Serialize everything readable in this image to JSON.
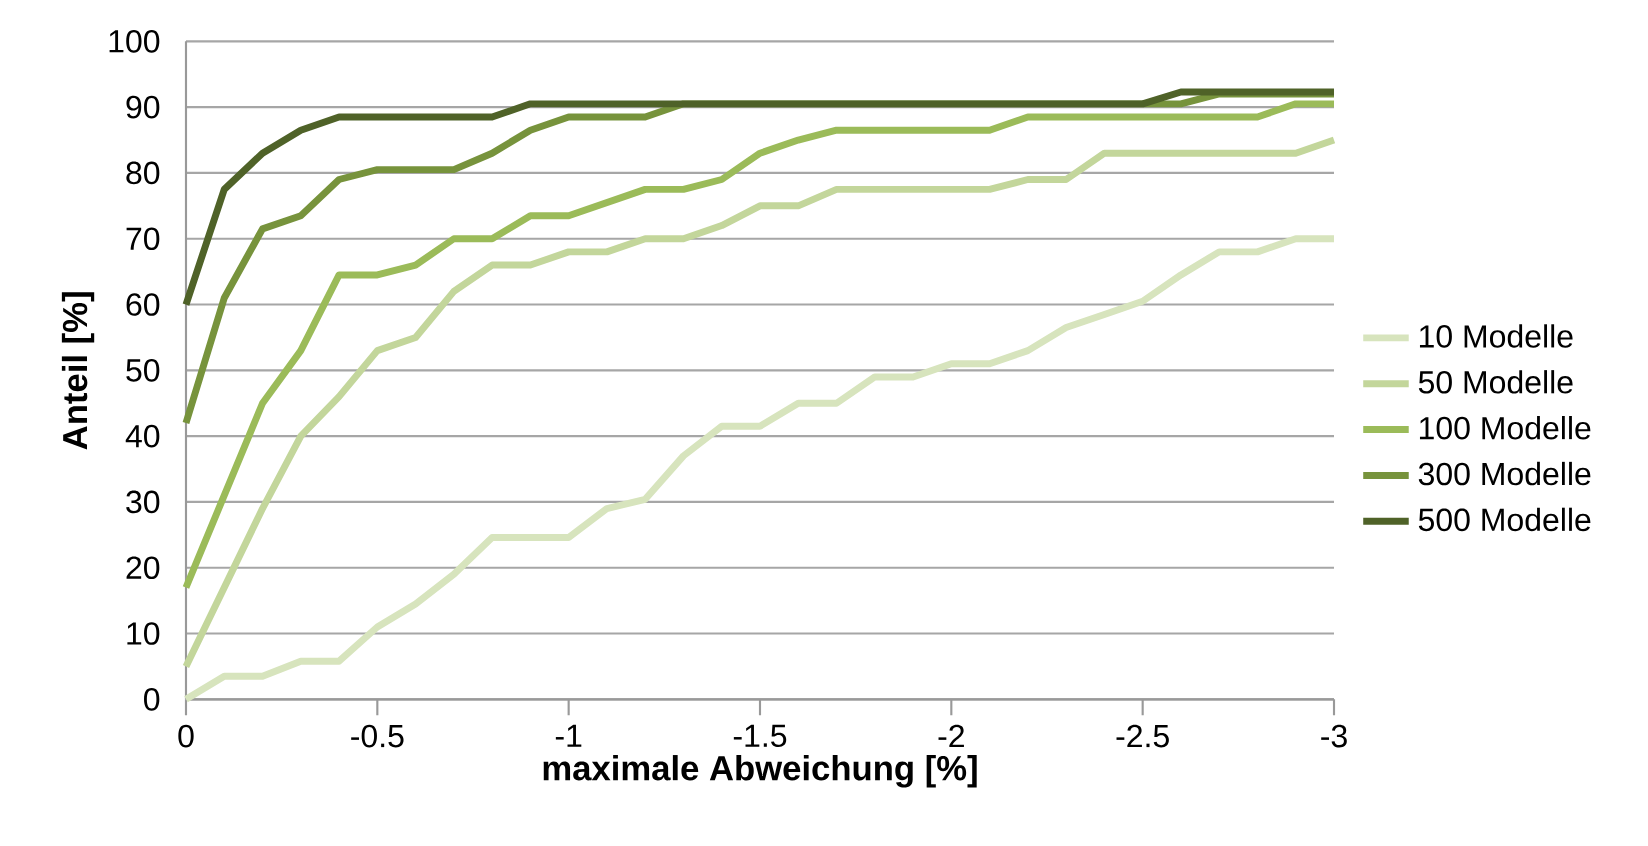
{
  "chart_data": {
    "type": "line",
    "xlabel": "maximale Abweichung [%]",
    "ylabel": "Anteil [%]",
    "x": [
      0,
      -0.1,
      -0.2,
      -0.3,
      -0.4,
      -0.5,
      -0.6,
      -0.7,
      -0.8,
      -0.9,
      -1,
      -1.1,
      -1.2,
      -1.3,
      -1.4,
      -1.5,
      -1.6,
      -1.7,
      -1.8,
      -1.9,
      -2,
      -2.1,
      -2.2,
      -2.3,
      -2.4,
      -2.5,
      -2.6,
      -2.7,
      -2.8,
      -2.9,
      -3
    ],
    "xlim": [
      0,
      -3
    ],
    "xticks": [
      0,
      -0.5,
      -1,
      -1.5,
      -2,
      -2.5,
      -3
    ],
    "ylim": [
      0,
      100
    ],
    "yticks": [
      0,
      10,
      20,
      30,
      40,
      50,
      60,
      70,
      80,
      90,
      100
    ],
    "grid": "y",
    "legend": "right",
    "line_style": "solid",
    "marker": "none",
    "series": [
      {
        "name": "10 Modelle",
        "color": "#d7e4bd",
        "values": [
          0,
          3.5,
          3.5,
          5.8,
          5.8,
          11,
          14.5,
          19,
          24.6,
          24.6,
          24.6,
          29,
          30.4,
          37,
          41.5,
          41.5,
          45,
          45,
          49,
          49,
          51,
          51,
          53,
          56.5,
          58.5,
          60.5,
          64.5,
          68,
          68,
          70,
          70
        ]
      },
      {
        "name": "50 Modelle",
        "color": "#c3d69b",
        "values": [
          5,
          17,
          29,
          40,
          46,
          53,
          55,
          62,
          66,
          66,
          68,
          68,
          70,
          70,
          72,
          75,
          75,
          77.5,
          77.5,
          77.5,
          77.5,
          77.5,
          79,
          79,
          83,
          83,
          83,
          83,
          83,
          83,
          85
        ]
      },
      {
        "name": "100 Modelle",
        "color": "#9bbb59",
        "values": [
          17,
          31,
          45,
          53,
          64.5,
          64.5,
          66,
          70,
          70,
          73.5,
          73.5,
          75.5,
          77.5,
          77.5,
          79,
          83,
          85,
          86.5,
          86.5,
          86.5,
          86.5,
          86.5,
          88.5,
          88.5,
          88.5,
          88.5,
          88.5,
          88.5,
          88.5,
          90.5,
          90.5
        ]
      },
      {
        "name": "300 Modelle",
        "color": "#77933c",
        "values": [
          42,
          61,
          71.5,
          73.5,
          79,
          80.5,
          80.5,
          80.5,
          83,
          86.5,
          88.5,
          88.5,
          88.5,
          90.5,
          90.5,
          90.5,
          90.5,
          90.5,
          90.5,
          90.5,
          90.5,
          90.5,
          90.5,
          90.5,
          90.5,
          90.5,
          90.5,
          92,
          92,
          92,
          92
        ]
      },
      {
        "name": "500 Modelle",
        "color": "#4f6228",
        "values": [
          60,
          77.5,
          83,
          86.5,
          88.5,
          88.5,
          88.5,
          88.5,
          88.5,
          90.5,
          90.5,
          90.5,
          90.5,
          90.5,
          90.5,
          90.5,
          90.5,
          90.5,
          90.5,
          90.5,
          90.5,
          90.5,
          90.5,
          90.5,
          90.5,
          90.5,
          92.3,
          92.3,
          92.3,
          92.3,
          92.3
        ]
      }
    ]
  }
}
